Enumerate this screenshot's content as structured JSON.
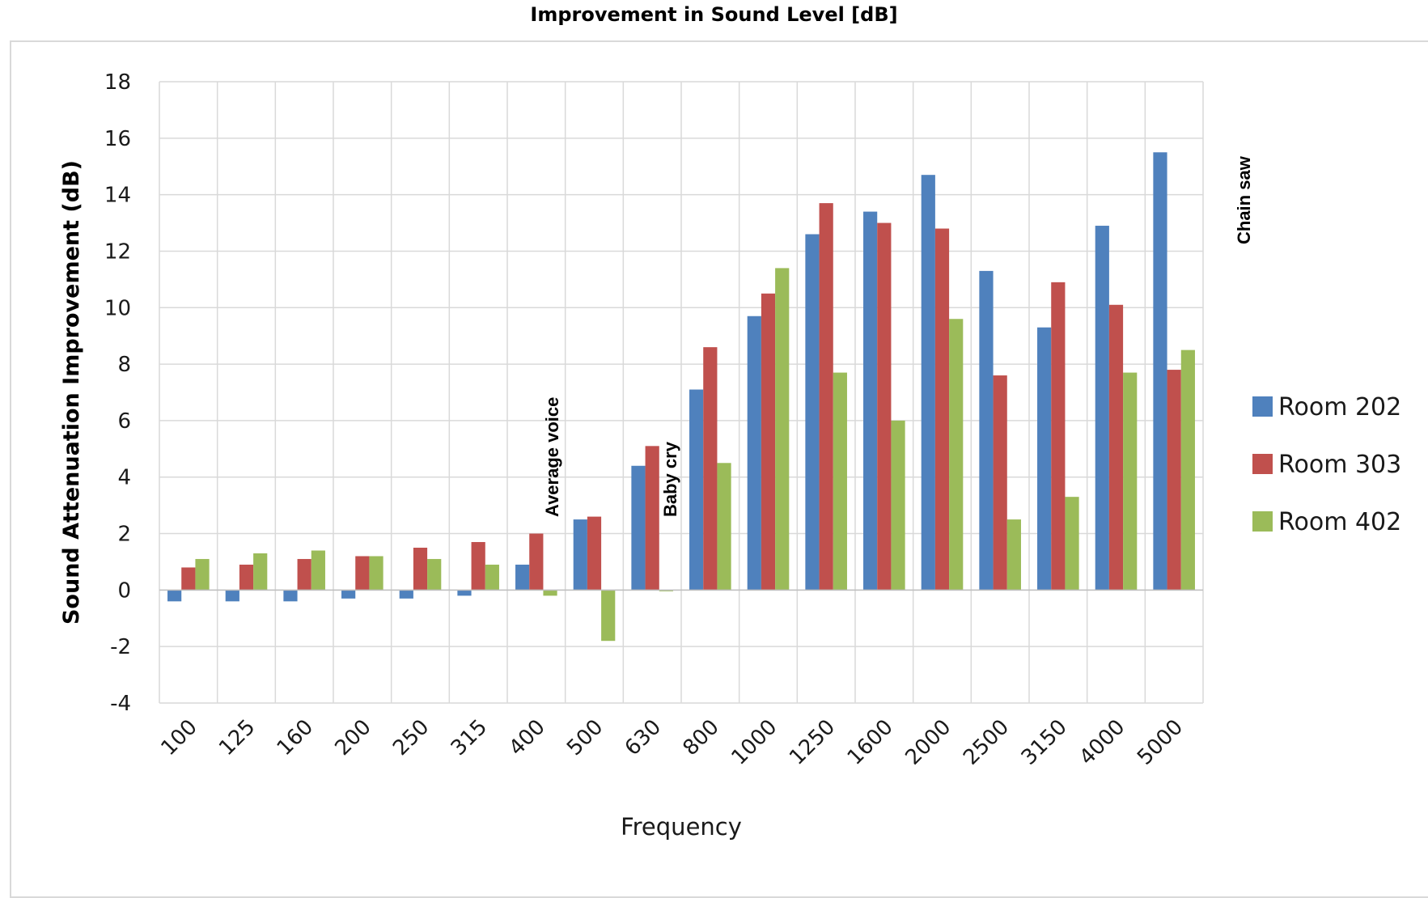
{
  "chart_data": {
    "type": "bar",
    "title": "Improvement in Sound Level [dB]",
    "xlabel": "Frequency",
    "ylabel": "Sound Attenuation Improvement (dB)",
    "ylim": [
      -4,
      18
    ],
    "yticks": [
      "-4",
      "-2",
      "0",
      "2",
      "4",
      "6",
      "8",
      "10",
      "12",
      "14",
      "16",
      "18"
    ],
    "grid": true,
    "legend_position": "right",
    "categories": [
      "100",
      "125",
      "160",
      "200",
      "250",
      "315",
      "400",
      "500",
      "630",
      "800",
      "1000",
      "1250",
      "1600",
      "2000",
      "2500",
      "3150",
      "4000",
      "5000"
    ],
    "series": [
      {
        "name": "Room 202",
        "color": "#4F81BD",
        "values": [
          -0.4,
          -0.4,
          -0.4,
          -0.3,
          -0.3,
          -0.2,
          0.9,
          2.5,
          4.4,
          7.1,
          9.7,
          12.6,
          13.4,
          14.7,
          11.3,
          9.3,
          12.9,
          15.5
        ]
      },
      {
        "name": "Room 303",
        "color": "#C0504D",
        "values": [
          0.8,
          0.9,
          1.1,
          1.2,
          1.5,
          1.7,
          2.0,
          2.6,
          5.1,
          8.6,
          10.5,
          13.7,
          13.0,
          12.8,
          7.6,
          10.9,
          10.1,
          7.8
        ]
      },
      {
        "name": "Room 402",
        "color": "#9BBB59",
        "values": [
          1.1,
          1.3,
          1.4,
          1.2,
          1.1,
          0.9,
          -0.2,
          -1.8,
          0,
          4.5,
          11.4,
          7.7,
          6.0,
          9.6,
          2.5,
          3.3,
          7.7,
          8.5
        ]
      }
    ],
    "annotations": [
      {
        "text": "Average voice",
        "category": "400"
      },
      {
        "text": "Baby cry",
        "category": "630"
      },
      {
        "text": "Chain saw",
        "category": "5000"
      }
    ]
  }
}
